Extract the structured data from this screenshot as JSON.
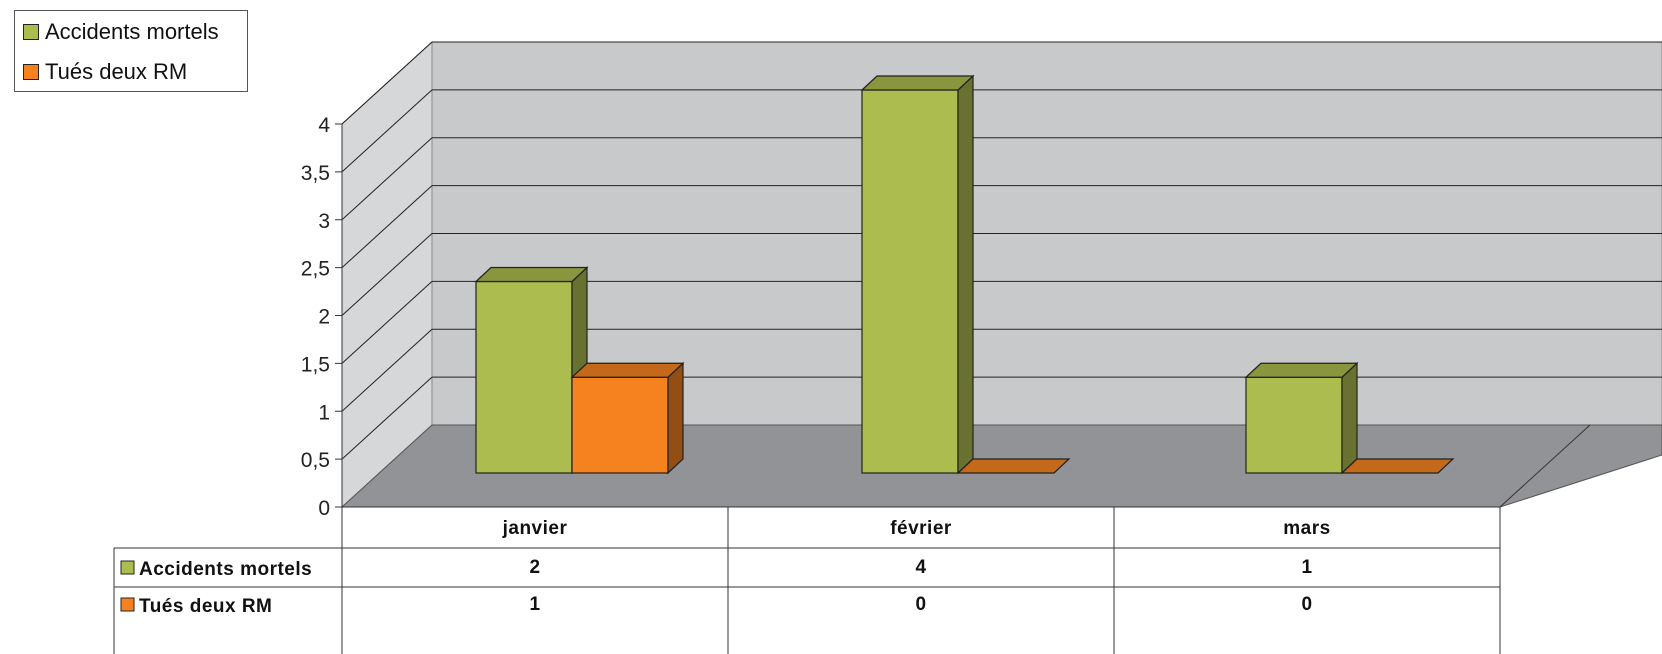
{
  "chart_data": {
    "type": "bar",
    "title": "",
    "xlabel": "",
    "ylabel": "",
    "categories": [
      "janvier",
      "février",
      "mars"
    ],
    "series": [
      {
        "name": "Accidents mortels",
        "values": [
          2,
          4,
          1
        ],
        "color": "#adbc4e"
      },
      {
        "name": "Tués deux RM",
        "values": [
          1,
          0,
          0
        ],
        "color": "#f5821f"
      }
    ],
    "ylim": [
      0,
      4
    ],
    "yticks": [
      "0",
      "0,5",
      "1",
      "1,5",
      "2",
      "2,5",
      "3",
      "3,5",
      "4"
    ],
    "grid": true,
    "legend_position": "top-left",
    "three_d": true,
    "data_table": true
  }
}
